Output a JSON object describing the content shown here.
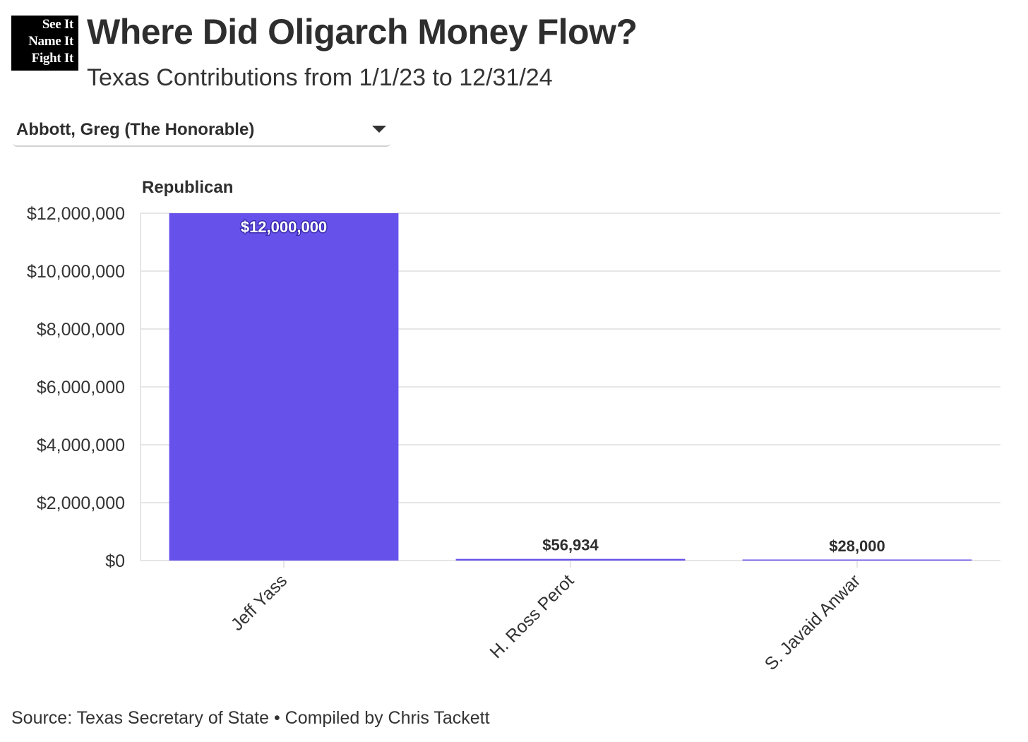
{
  "logo": {
    "lines": [
      "See It",
      "Name It",
      "Fight It"
    ]
  },
  "header": {
    "title": "Where Did Oligarch Money Flow?",
    "subtitle": "Texas Contributions from 1/1/23 to 12/31/24"
  },
  "filter": {
    "selected": "Abbott, Greg (The Honorable)"
  },
  "facet": {
    "label": "Republican"
  },
  "footer": {
    "source": "Source: Texas Secretary of State • Compiled by Chris Tackett"
  },
  "colors": {
    "bar": "#6652eb",
    "grid": "#e6e6e6",
    "axis_text": "#333333",
    "value_label_dark": "#2e2e2e",
    "value_label_light": "#ffffff"
  },
  "chart_data": {
    "type": "bar",
    "title": "Where Did Oligarch Money Flow?",
    "subtitle": "Texas Contributions from 1/1/23 to 12/31/24",
    "facet": "Republican",
    "categories": [
      "Jeff Yass",
      "H. Ross Perot",
      "S. Javaid Anwar"
    ],
    "values": [
      12000000,
      56934,
      28000
    ],
    "value_labels": [
      "$12,000,000",
      "$56,934",
      "$28,000"
    ],
    "ylim": [
      0,
      12000000
    ],
    "yticks": [
      0,
      2000000,
      4000000,
      6000000,
      8000000,
      10000000,
      12000000
    ],
    "ytick_labels": [
      "$0",
      "$2,000,000",
      "$4,000,000",
      "$6,000,000",
      "$8,000,000",
      "$10,000,000",
      "$12,000,000"
    ],
    "xlabel": "",
    "ylabel": "",
    "grid": true,
    "legend": "none"
  }
}
